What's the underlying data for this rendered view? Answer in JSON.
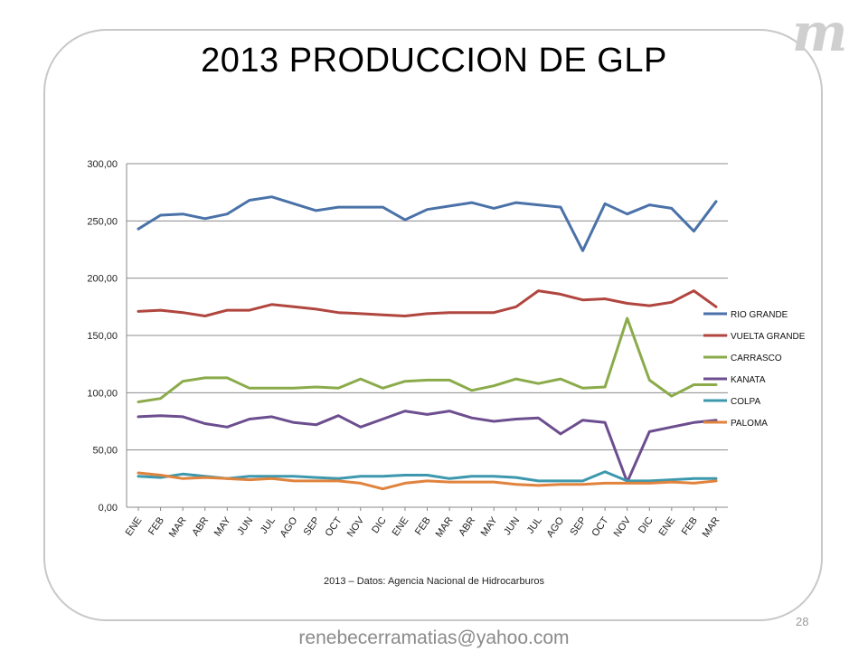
{
  "slide": {
    "title": "2013 PRODUCCION DE GLP",
    "source": "2013 – Datos: Agencia Nacional de Hidrocarburos",
    "page_number": "28",
    "email": "renebecerramatias@yahoo.com",
    "logo_text": "m"
  },
  "chart_data": {
    "type": "line",
    "title": "",
    "xlabel": "",
    "ylabel": "",
    "ylim": [
      0,
      300
    ],
    "yticks": [
      "0,00",
      "50,00",
      "100,00",
      "150,00",
      "200,00",
      "250,00",
      "300,00"
    ],
    "grid": true,
    "legend_position": "right",
    "categories": [
      "ENE",
      "FEB",
      "MAR",
      "ABR",
      "MAY",
      "JUN",
      "JUL",
      "AGO",
      "SEP",
      "OCT",
      "NOV",
      "DIC",
      "ENE",
      "FEB",
      "MAR",
      "ABR",
      "MAY",
      "JUN",
      "JUL",
      "AGO",
      "SEP",
      "OCT",
      "NOV",
      "DIC",
      "ENE",
      "FEB",
      "MAR"
    ],
    "series": [
      {
        "name": "RIO GRANDE",
        "color": "#4a72a8",
        "values": [
          243,
          255,
          256,
          252,
          256,
          268,
          271,
          265,
          259,
          262,
          262,
          262,
          251,
          260,
          263,
          266,
          261,
          266,
          264,
          262,
          224,
          265,
          256,
          264,
          261,
          241,
          267
        ]
      },
      {
        "name": "VUELTA GRANDE",
        "color": "#b0463f",
        "values": [
          171,
          172,
          170,
          167,
          172,
          172,
          177,
          175,
          173,
          170,
          169,
          168,
          167,
          169,
          170,
          170,
          170,
          175,
          189,
          186,
          181,
          182,
          178,
          176,
          179,
          189,
          175
        ]
      },
      {
        "name": "CARRASCO",
        "color": "#8bab4b",
        "values": [
          92,
          95,
          110,
          113,
          113,
          104,
          104,
          104,
          105,
          104,
          112,
          104,
          110,
          111,
          111,
          102,
          106,
          112,
          108,
          112,
          104,
          105,
          165,
          111,
          97,
          107,
          107
        ]
      },
      {
        "name": "KANATA",
        "color": "#6c4e8f",
        "values": [
          79,
          80,
          79,
          73,
          70,
          77,
          79,
          74,
          72,
          80,
          70,
          77,
          84,
          81,
          84,
          78,
          75,
          77,
          78,
          64,
          76,
          74,
          22,
          66,
          70,
          74,
          76
        ]
      },
      {
        "name": "COLPA",
        "color": "#3d98ad",
        "values": [
          27,
          26,
          29,
          27,
          25,
          27,
          27,
          27,
          26,
          25,
          27,
          27,
          28,
          28,
          25,
          27,
          27,
          26,
          23,
          23,
          23,
          31,
          23,
          23,
          24,
          25,
          25
        ]
      },
      {
        "name": "PALOMA",
        "color": "#e0833d",
        "values": [
          30,
          28,
          25,
          26,
          25,
          24,
          25,
          23,
          23,
          23,
          21,
          16,
          21,
          23,
          22,
          22,
          22,
          20,
          19,
          20,
          20,
          21,
          21,
          21,
          22,
          21,
          23
        ]
      }
    ]
  }
}
